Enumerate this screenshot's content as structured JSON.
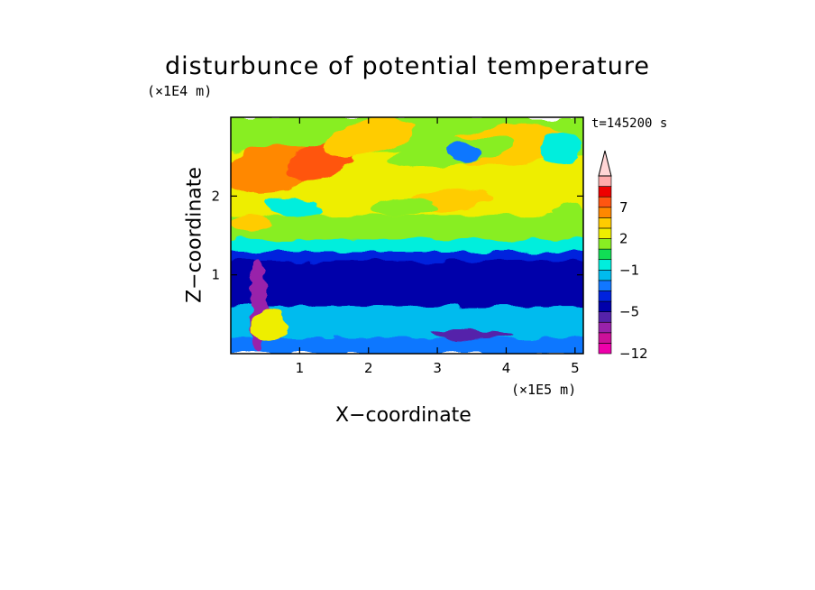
{
  "chart_data": {
    "type": "heatmap",
    "title": "disturbunce of potential temperature",
    "xlabel": "X−coordinate",
    "ylabel": "Z−coordinate",
    "x_unit": "(×1E5 m)",
    "y_unit": "(×1E4 m)",
    "time_label": "t=145200 s",
    "xlim": [
      0,
      5.12
    ],
    "ylim": [
      0,
      3.0
    ],
    "x_ticks": [
      1,
      2,
      3,
      4,
      5
    ],
    "y_ticks": [
      1,
      2
    ],
    "x_tick_labels": [
      "1",
      "2",
      "3",
      "4",
      "5"
    ],
    "y_tick_labels": [
      "1",
      "2"
    ],
    "colorbar": {
      "levels": [
        -12,
        -10,
        -8,
        -6,
        -5,
        -4,
        -3,
        -2,
        -1,
        0,
        1,
        2,
        3,
        5,
        7,
        9,
        11
      ],
      "colors": [
        "#ee00aa",
        "#cc1199",
        "#9922aa",
        "#5522aa",
        "#0000aa",
        "#0022dd",
        "#1177ff",
        "#00bbee",
        "#00eedd",
        "#11dd55",
        "#88ee22",
        "#eeee00",
        "#ffcc00",
        "#ff8800",
        "#ff5511",
        "#ee0000",
        "#ffaaaa"
      ],
      "extend_top_color": "#ffd5d5",
      "labels": [
        {
          "value": "7",
          "level_index": 14
        },
        {
          "value": "2",
          "level_index": 11
        },
        {
          "value": "−1",
          "level_index": 8
        },
        {
          "value": "−5",
          "level_index": 4
        },
        {
          "value": "−12",
          "level_index": 0
        }
      ]
    },
    "field_layers": [
      {
        "z_range": [
          0.0,
          0.15
        ],
        "description_level": -3
      },
      {
        "z_range": [
          0.15,
          0.55
        ],
        "description_level": -2
      },
      {
        "z_range": [
          0.55,
          1.2
        ],
        "description_level": -5
      },
      {
        "z_range": [
          1.2,
          1.4
        ],
        "description_level": -1
      },
      {
        "z_range": [
          1.4,
          1.7
        ],
        "description_level": 1
      },
      {
        "z_range": [
          1.7,
          2.6
        ],
        "description_level": 2
      },
      {
        "z_range": [
          2.2,
          2.5
        ],
        "description_level": 7
      },
      {
        "z_range": [
          2.6,
          3.0
        ],
        "description_level": 2
      }
    ]
  }
}
